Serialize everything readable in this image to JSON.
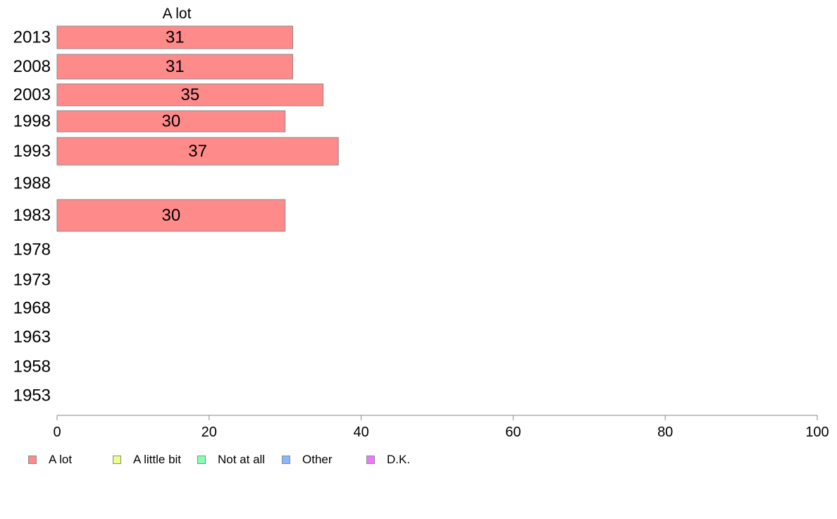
{
  "chart_data": {
    "type": "bar",
    "orientation": "horizontal",
    "categories": [
      "2013",
      "2008",
      "2003",
      "1998",
      "1993",
      "1988",
      "1983",
      "1978",
      "1973",
      "1968",
      "1963",
      "1958",
      "1953"
    ],
    "series": [
      {
        "name": "A lot",
        "color": "#ff8a8a",
        "values": [
          31,
          31,
          35,
          30,
          37,
          null,
          30,
          null,
          null,
          null,
          null,
          null,
          null
        ]
      }
    ],
    "value_labels": [
      "31",
      "31",
      "35",
      "30",
      "37",
      "",
      "30",
      "",
      "",
      "",
      "",
      "",
      ""
    ],
    "series_title": "A lot",
    "xticks": [
      "0",
      "20",
      "40",
      "60",
      "80",
      "100"
    ],
    "xlim": [
      0,
      100
    ],
    "grid": false,
    "legend_position": "bottom-left",
    "legend": [
      {
        "label": "A lot",
        "color": "#ff8a8a"
      },
      {
        "label": "A little bit",
        "color": "#eeff88"
      },
      {
        "label": "Not at all",
        "color": "#88ffb0"
      },
      {
        "label": "Other",
        "color": "#88b8ff"
      },
      {
        "label": "D.K.",
        "color": "#ee77ff"
      }
    ]
  }
}
